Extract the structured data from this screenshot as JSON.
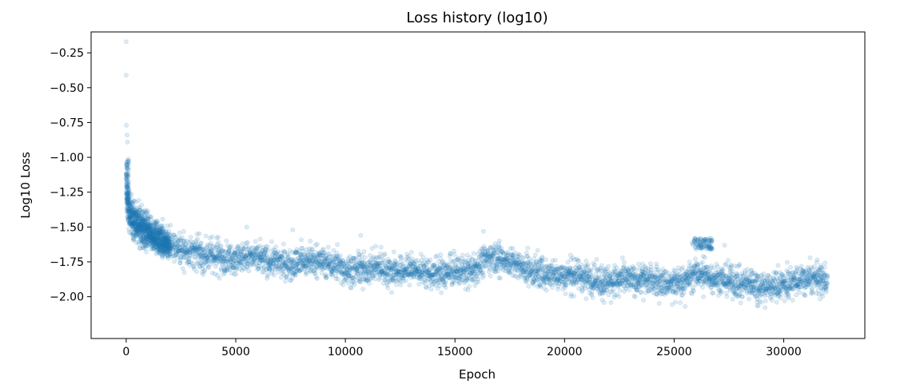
{
  "chart_data": {
    "type": "scatter",
    "title": "Loss history (log10)",
    "xlabel": "Epoch",
    "ylabel": "Log10 Loss",
    "xlim": [
      -1600,
      33700
    ],
    "ylim": [
      -2.3,
      -0.1
    ],
    "xticks": [
      0,
      5000,
      10000,
      15000,
      20000,
      25000,
      30000
    ],
    "xtick_labels": [
      "0",
      "5000",
      "10000",
      "15000",
      "20000",
      "25000",
      "30000"
    ],
    "yticks": [
      -0.25,
      -0.5,
      -0.75,
      -1.0,
      -1.25,
      -1.5,
      -1.75,
      -2.0
    ],
    "ytick_labels": [
      "−0.25",
      "−0.50",
      "−0.75",
      "−1.00",
      "−1.25",
      "−1.50",
      "−1.75",
      "−2.00"
    ],
    "grid": false,
    "legend": "none",
    "marker_color": "#1f77b4",
    "marker_alpha": 0.15,
    "series": [
      {
        "points_x": [
          0,
          20,
          60,
          100,
          200,
          300,
          500,
          700,
          1000,
          1500,
          2000,
          2500,
          3000,
          3500,
          4000,
          4500,
          5000,
          5500,
          6000,
          6500,
          7000,
          7500,
          8000,
          8500,
          9000,
          9500,
          10000,
          10500,
          11000,
          11500,
          12000,
          12500,
          13000,
          13500,
          14000,
          14500,
          15000,
          15500,
          16000,
          16500,
          17000,
          17500,
          18000,
          18500,
          19000,
          19500,
          20000,
          20500,
          21000,
          21500,
          22000,
          22500,
          23000,
          23500,
          24000,
          24500,
          25000,
          25500,
          26000,
          26500,
          27000,
          27500,
          28000,
          28500,
          29000,
          29500,
          30000,
          30500,
          31000,
          31500,
          32000
        ],
        "trend_y": [
          -1.22,
          -1.28,
          -1.33,
          -1.37,
          -1.41,
          -1.44,
          -1.47,
          -1.5,
          -1.54,
          -1.59,
          -1.63,
          -1.66,
          -1.68,
          -1.7,
          -1.71,
          -1.72,
          -1.72,
          -1.71,
          -1.73,
          -1.74,
          -1.76,
          -1.77,
          -1.75,
          -1.74,
          -1.75,
          -1.77,
          -1.8,
          -1.81,
          -1.8,
          -1.79,
          -1.81,
          -1.82,
          -1.8,
          -1.82,
          -1.84,
          -1.83,
          -1.82,
          -1.81,
          -1.78,
          -1.72,
          -1.71,
          -1.75,
          -1.79,
          -1.82,
          -1.83,
          -1.84,
          -1.85,
          -1.84,
          -1.86,
          -1.88,
          -1.89,
          -1.87,
          -1.88,
          -1.87,
          -1.88,
          -1.9,
          -1.91,
          -1.88,
          -1.84,
          -1.85,
          -1.87,
          -1.89,
          -1.91,
          -1.9,
          -1.92,
          -1.93,
          -1.91,
          -1.89,
          -1.88,
          -1.87,
          -1.87
        ],
        "spread": 0.05
      }
    ],
    "outliers": [
      {
        "x": 0,
        "y": -0.17
      },
      {
        "x": 0,
        "y": -0.41
      },
      {
        "x": 10,
        "y": -0.77
      },
      {
        "x": 40,
        "y": -0.84
      },
      {
        "x": 60,
        "y": -0.89
      },
      {
        "x": 90,
        "y": -1.03
      },
      {
        "x": 5500,
        "y": -1.5
      },
      {
        "x": 7600,
        "y": -1.52
      },
      {
        "x": 10700,
        "y": -1.56
      },
      {
        "x": 16300,
        "y": -1.53
      },
      {
        "x": 26300,
        "y": -1.6
      },
      {
        "x": 26000,
        "y": -1.62
      },
      {
        "x": 26700,
        "y": -1.61
      },
      {
        "x": 27300,
        "y": -1.63
      },
      {
        "x": 25500,
        "y": -2.07
      },
      {
        "x": 31200,
        "y": -1.72
      }
    ],
    "clusters": [
      {
        "x_range": [
          25800,
          27500
        ],
        "y_range": [
          -1.66,
          -1.58
        ]
      }
    ]
  }
}
